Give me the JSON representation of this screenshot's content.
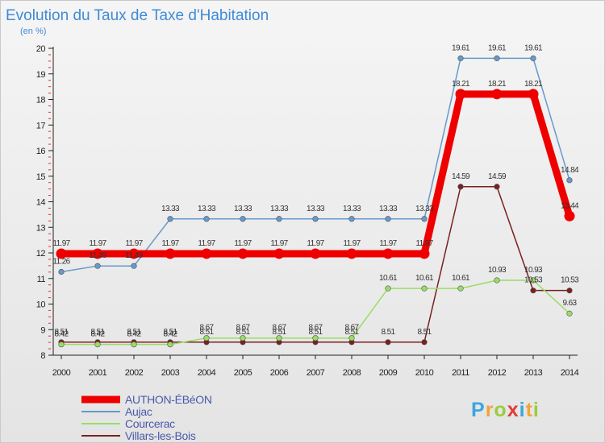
{
  "chart_data": {
    "type": "line",
    "title": "Evolution du Taux de Taxe d'Habitation",
    "subtitle": "(en %)",
    "x": [
      "2000",
      "2001",
      "2002",
      "2003",
      "2004",
      "2005",
      "2006",
      "2007",
      "2008",
      "2009",
      "2010",
      "2011",
      "2012",
      "2013",
      "2014"
    ],
    "y_ticks": [
      "8",
      "9",
      "10",
      "11",
      "12",
      "13",
      "14",
      "15",
      "16",
      "17",
      "18",
      "19",
      "20"
    ],
    "ylim": [
      8,
      20
    ],
    "grid": false,
    "legend_position": "bottom-left",
    "series": [
      {
        "name": "AUTHON-ÉBéON",
        "color": "#ee0000",
        "values": [
          11.97,
          11.97,
          11.97,
          11.97,
          11.97,
          11.97,
          11.97,
          11.97,
          11.97,
          11.97,
          11.97,
          18.21,
          18.21,
          18.21,
          13.44
        ],
        "labels": [
          "11.97",
          "11.97",
          "11.97",
          "11.97",
          "11.97",
          "11.97",
          "11.97",
          "11.97",
          "11.97",
          "11.97",
          "11.97",
          "18.21",
          "18.21",
          "18.21",
          "13.44"
        ]
      },
      {
        "name": "Aujac",
        "color": "#6699cc",
        "values": [
          11.26,
          11.49,
          11.49,
          13.33,
          13.33,
          13.33,
          13.33,
          13.33,
          13.33,
          13.33,
          13.33,
          19.61,
          19.61,
          19.61,
          14.84
        ],
        "labels": [
          "11.26",
          "11.49",
          "11.49",
          "13.33",
          "13.33",
          "13.33",
          "13.33",
          "13.33",
          "13.33",
          "13.33",
          "13.33",
          "19.61",
          "19.61",
          "19.61",
          "14.84"
        ]
      },
      {
        "name": "Courcerac",
        "color": "#99dd66",
        "values": [
          8.42,
          8.42,
          8.42,
          8.42,
          8.67,
          8.67,
          8.67,
          8.67,
          8.67,
          10.61,
          10.61,
          10.61,
          10.93,
          10.93,
          9.63
        ],
        "labels": [
          "8.42",
          "8.42",
          "8.42",
          "8.42",
          "8.67",
          "8.67",
          "8.67",
          "8.67",
          "8.67",
          "10.61",
          "10.61",
          "10.61",
          "10.93",
          "10.93",
          "9.63"
        ]
      },
      {
        "name": "Villars-les-Bois",
        "color": "#7a2020",
        "values": [
          8.51,
          8.51,
          8.51,
          8.51,
          8.51,
          8.51,
          8.51,
          8.51,
          8.51,
          8.51,
          8.51,
          14.59,
          14.59,
          10.53,
          10.53
        ],
        "labels": [
          "8.51",
          "8.51",
          "8.51",
          "8.51",
          "8.51",
          "8.51",
          "8.51",
          "8.51",
          "8.51",
          "8.51",
          "8.51",
          "14.59",
          "14.59",
          "10.53",
          "10.53"
        ]
      }
    ]
  },
  "logo": {
    "text": "Proxiti",
    "letter_colors": [
      "#3ba6e0",
      "#f2a43a",
      "#9ccd3b",
      "#e23a3a",
      "#3ba6e0",
      "#f2a43a",
      "#9ccd3b"
    ]
  }
}
